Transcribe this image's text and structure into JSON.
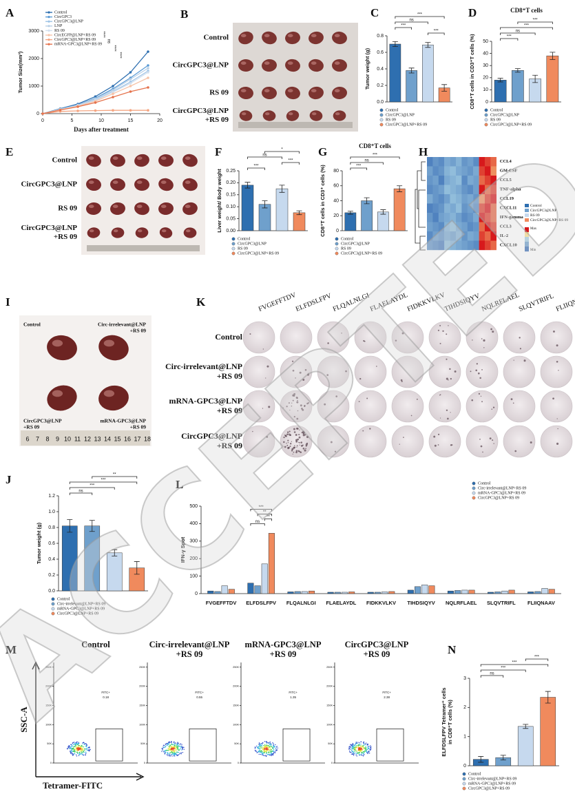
{
  "watermark": "ACCEPTED",
  "chart_data": [
    {
      "panel": "A",
      "type": "line",
      "y_label": "Tumor Size(mm³)",
      "x_label": "Days after treatment",
      "x": [
        0,
        3,
        6,
        9,
        12,
        15,
        18
      ],
      "xlim": [
        0,
        20
      ],
      "xticks": [
        0,
        5,
        10,
        15,
        20
      ],
      "ylim": [
        0,
        3000
      ],
      "yticks": [
        0,
        1000,
        2000,
        3000
      ],
      "series": [
        {
          "name": "Control",
          "color": "#2e6fb0",
          "values": [
            0,
            180,
            350,
            620,
            1000,
            1500,
            2250
          ]
        },
        {
          "name": "CircGPC3",
          "color": "#5b9bd5",
          "values": [
            0,
            170,
            320,
            560,
            900,
            1300,
            1750
          ]
        },
        {
          "name": "CircGPC3@LNP",
          "color": "#9dc3e6",
          "values": [
            0,
            150,
            300,
            500,
            800,
            1150,
            1550
          ]
        },
        {
          "name": "LNP",
          "color": "#b8cfe6",
          "values": [
            0,
            160,
            310,
            540,
            850,
            1250,
            1650
          ]
        },
        {
          "name": "RS 09",
          "color": "#d2dfee",
          "values": [
            0,
            150,
            290,
            480,
            780,
            1100,
            1500
          ]
        },
        {
          "name": "CircEGFP@LNP+RS 09",
          "color": "#f6c3a8",
          "values": [
            0,
            140,
            270,
            450,
            720,
            1000,
            1300
          ]
        },
        {
          "name": "CircGPC3@LNP+RS 09",
          "color": "#f4a582",
          "values": [
            0,
            80,
            100,
            110,
            120,
            120,
            120
          ]
        },
        {
          "name": "mRNA-GPC3@LNP+RS 09",
          "color": "#e5734d",
          "values": [
            0,
            130,
            250,
            400,
            600,
            800,
            950
          ]
        }
      ],
      "annotations": [
        "****",
        "ns",
        "****",
        "****"
      ]
    },
    {
      "panel": "C",
      "type": "bar",
      "y_label": "Tumor weight  (g)",
      "categories": [
        "Control",
        "CircGPC3@LNP",
        "RS 09",
        "CircGPC3@LNP+RS 09"
      ],
      "colors": [
        "#2e6fb0",
        "#6fa0cc",
        "#c6d9ee",
        "#f08a5d"
      ],
      "values": [
        0.7,
        0.38,
        0.69,
        0.17
      ],
      "errors": [
        0.03,
        0.03,
        0.03,
        0.04
      ],
      "ylim": [
        0,
        0.8
      ],
      "yticks": [
        {
          "value": 0,
          "label": "0.0"
        },
        0.2,
        0.4,
        0.6,
        0.8
      ],
      "comparisons": [
        {
          "pair": [
            0,
            3
          ],
          "label": "***"
        },
        {
          "pair": [
            0,
            2
          ],
          "label": "ns"
        },
        {
          "pair": [
            0,
            1
          ],
          "label": "***"
        },
        {
          "pair": [
            2,
            3
          ],
          "label": "***"
        }
      ]
    },
    {
      "panel": "D",
      "type": "bar",
      "title": "CD8⁺T cells",
      "y_label": "CD8⁺T cells in CD3⁺T cells (%)",
      "categories": [
        "Control",
        "CircGPC3@LNP",
        "RS 09",
        "CircGPC3@LNP+RS 09"
      ],
      "colors": [
        "#2e6fb0",
        "#6fa0cc",
        "#c6d9ee",
        "#f08a5d"
      ],
      "values": [
        18,
        26,
        19,
        38
      ],
      "errors": [
        1.5,
        1.5,
        3,
        3
      ],
      "ylim": [
        0,
        50
      ],
      "yticks": [
        0,
        10,
        20,
        30,
        40,
        50
      ],
      "comparisons": [
        {
          "pair": [
            1,
            3
          ],
          "label": "***"
        },
        {
          "pair": [
            0,
            3
          ],
          "label": "***"
        },
        {
          "pair": [
            0,
            2
          ],
          "label": "ns"
        },
        {
          "pair": [
            0,
            1
          ],
          "label": "***"
        }
      ]
    },
    {
      "panel": "F",
      "type": "bar",
      "y_label": "Liver weight/ Body weight",
      "categories": [
        "Control",
        "CircGPC3@LNP",
        "RS 09",
        "CircGPC3@LNP+RS 09"
      ],
      "colors": [
        "#2e6fb0",
        "#6fa0cc",
        "#c6d9ee",
        "#f08a5d"
      ],
      "values": [
        0.19,
        0.11,
        0.175,
        0.075
      ],
      "errors": [
        0.012,
        0.015,
        0.015,
        0.008
      ],
      "ylim": [
        0,
        0.25
      ],
      "yticks": [
        {
          "value": 0,
          "label": "0.00"
        },
        0.05,
        {
          "value": 0.1,
          "label": "0.10"
        },
        0.15,
        {
          "value": 0.2,
          "label": "0.20"
        },
        0.25
      ],
      "comparisons": [
        {
          "pair": [
            1,
            3
          ],
          "label": "*"
        },
        {
          "pair": [
            0,
            2
          ],
          "label": "ns"
        },
        {
          "pair": [
            2,
            3
          ],
          "label": "***"
        },
        {
          "pair": [
            0,
            1
          ],
          "label": "***"
        }
      ]
    },
    {
      "panel": "G",
      "type": "bar",
      "title": "CD8⁺T cells",
      "y_label": "CD8⁺T cells in CD3⁺ cells (%)",
      "categories": [
        "Control",
        "CircGPC3@LNP",
        "RS 09",
        "CircGPC3@LNP+RS 09"
      ],
      "colors": [
        "#2e6fb0",
        "#6fa0cc",
        "#c6d9ee",
        "#f08a5d"
      ],
      "values": [
        24,
        40,
        25,
        56
      ],
      "errors": [
        2,
        4,
        3,
        4
      ],
      "ylim": [
        0,
        80
      ],
      "yticks": [
        0,
        20,
        40,
        60,
        80
      ],
      "comparisons": [
        {
          "pair": [
            0,
            3
          ],
          "label": "***"
        },
        {
          "pair": [
            0,
            2
          ],
          "label": "ns"
        },
        {
          "pair": [
            0,
            1
          ],
          "label": "***"
        }
      ]
    },
    {
      "panel": "J",
      "type": "bar",
      "y_label": "Tumor weight (g)",
      "categories": [
        "Control",
        "Circ-irrelevant@LNP+RS 09",
        "mRNA-GPC3@LNP+RS 09",
        "CircGPC3@LNP+RS 09"
      ],
      "colors": [
        "#2e6fb0",
        "#6fa0cc",
        "#c6d9ee",
        "#f08a5d"
      ],
      "values": [
        0.82,
        0.82,
        0.48,
        0.29
      ],
      "errors": [
        0.08,
        0.07,
        0.04,
        0.08
      ],
      "ylim": [
        0,
        1.2
      ],
      "yticks": [
        {
          "value": 0,
          "label": "0.0"
        },
        0.2,
        0.4,
        0.6,
        0.8,
        {
          "value": 1,
          "label": "1.0"
        },
        1.2
      ],
      "comparisons": [
        {
          "pair": [
            1,
            3
          ],
          "label": "**"
        },
        {
          "pair": [
            0,
            3
          ],
          "label": "***"
        },
        {
          "pair": [
            0,
            2
          ],
          "label": "***"
        },
        {
          "pair": [
            0,
            1
          ],
          "label": "ns"
        }
      ]
    },
    {
      "panel": "L",
      "type": "grouped_bar",
      "y_label": "IFN-γ Spot",
      "categories": [
        "FVGEFFTDV",
        "ELFDSLFPV",
        "FLQALNLGI",
        "FLAELAYDL",
        "FIDKKVLKV",
        "TIHDSIQYV",
        "NQLRFLAEL",
        "SLQVTRIFL",
        "FLIIQNAAV"
      ],
      "series": [
        {
          "name": "Control",
          "color": "#2e6fb0",
          "values": [
            15,
            60,
            10,
            8,
            8,
            20,
            15,
            8,
            10
          ]
        },
        {
          "name": "Circ-irrelevant@LNP+RS 09",
          "color": "#6fa0cc",
          "values": [
            12,
            45,
            12,
            8,
            8,
            40,
            18,
            10,
            12
          ]
        },
        {
          "name": "mRNA-GPC3@LNP+RS 09",
          "color": "#c6d9ee",
          "values": [
            45,
            170,
            12,
            8,
            10,
            50,
            20,
            15,
            30
          ]
        },
        {
          "name": "CircGPC3@LNP+RS 09",
          "color": "#f08a5d",
          "values": [
            25,
            345,
            15,
            10,
            12,
            45,
            20,
            20,
            25
          ]
        }
      ],
      "ylim": [
        0,
        500
      ],
      "yticks": [
        0,
        100,
        200,
        300,
        400,
        500
      ],
      "comparisons": [
        {
          "category": 1,
          "pair": [
            0,
            3
          ],
          "label": "***"
        },
        {
          "category": 1,
          "pair": [
            1,
            3
          ],
          "label": "**"
        },
        {
          "category": 1,
          "pair": [
            2,
            3
          ],
          "label": "**"
        },
        {
          "category": 1,
          "pair": [
            0,
            2
          ],
          "label": "ns"
        }
      ]
    },
    {
      "panel": "N",
      "type": "bar",
      "y_label": [
        "ELFDSLFPV Tetramer⁺ cells",
        "in CD8⁺T cells (%)"
      ],
      "categories": [
        "Control",
        "Circ-irrelevant@LNP+RS 09",
        "mRNA-GPC3@LNP+RS 09",
        "CircGPC3@LNP+RS 09"
      ],
      "colors": [
        "#2e6fb0",
        "#6fa0cc",
        "#c6d9ee",
        "#f08a5d"
      ],
      "values": [
        0.22,
        0.28,
        1.35,
        2.35
      ],
      "errors": [
        0.1,
        0.08,
        0.07,
        0.2
      ],
      "ylim": [
        0,
        3
      ],
      "yticks": [
        0,
        1,
        2,
        3
      ],
      "comparisons": [
        {
          "pair": [
            2,
            3
          ],
          "label": "***"
        },
        {
          "pair": [
            0,
            3
          ],
          "label": "***"
        },
        {
          "pair": [
            0,
            2
          ],
          "label": "***"
        },
        {
          "pair": [
            0,
            1
          ],
          "label": "ns"
        }
      ]
    }
  ],
  "photos": {
    "B": {
      "panel": "B",
      "rows": [
        [
          "Control"
        ],
        [
          "CircGPC3@LNP"
        ],
        [
          "RS 09"
        ],
        [
          "CircGPC3@LNP",
          "+RS 09"
        ]
      ]
    },
    "E": {
      "panel": "E",
      "rows": [
        [
          "Control"
        ],
        [
          "CircGPC3@LNP"
        ],
        [
          "RS 09"
        ],
        [
          "CircGPC3@LNP",
          "+RS 09"
        ]
      ]
    },
    "I": {
      "panel": "I",
      "labels": [
        [
          "Control"
        ],
        [
          "Circ-irrelevant@LNP",
          "+RS 09"
        ],
        [
          "CircGPC3@LNP",
          "+RS 09"
        ],
        [
          "mRNA-GPC3@LNP",
          "+RS 09"
        ]
      ],
      "ruler": [
        6,
        7,
        8,
        9,
        10,
        11,
        12,
        13,
        14,
        15,
        16,
        17,
        18
      ]
    },
    "K": {
      "panel": "K",
      "columns": [
        "FVGEFFTDV",
        "ELFDSLFPV",
        "FLQALNLGI",
        "FLAELAYDL",
        "FIDKKVLKV",
        "TIHDSIQYV",
        "NQLRFLAEL",
        "SLQVTRIFL",
        "FLIIQNAAV"
      ],
      "rows": [
        [
          "Control"
        ],
        [
          "Circ-irrelevant@LNP",
          "+RS 09"
        ],
        [
          "mRNA-GPC3@LNP",
          "+RS 09"
        ],
        [
          "CircGPC3@LNP",
          "+RS 09"
        ]
      ]
    }
  },
  "heatmap": {
    "panel": "H",
    "genes": [
      "CCL4",
      "GM-CSF",
      "CCL5",
      "TNF-alpha",
      "CCL19",
      "CXCL11",
      "IFN-gamma",
      "CCL3",
      "IL-2",
      "CXCL10"
    ],
    "groups": [
      "Control",
      "CircGPC3@LNP",
      "RS 09",
      "CircGPC3@LNP+RS 09"
    ],
    "group_colors": [
      "#2e6fb0",
      "#6fa0cc",
      "#c6d9ee",
      "#f08a5d"
    ],
    "scale_labels": [
      "Max",
      "Min"
    ],
    "values": [
      [
        -0.8,
        -0.6,
        -0.7,
        -0.4,
        -0.5,
        -0.3,
        -0.6,
        -0.5,
        -0.7,
        1,
        0.9,
        0.8
      ],
      [
        -0.5,
        -0.7,
        -0.6,
        -0.3,
        -0.2,
        -0.4,
        -0.5,
        -0.6,
        -0.4,
        0.9,
        1,
        0.7
      ],
      [
        -0.6,
        -0.5,
        -0.8,
        -0.4,
        -0.3,
        -0.2,
        -0.7,
        -0.4,
        -0.5,
        0.8,
        0.9,
        1
      ],
      [
        -0.7,
        -0.6,
        -0.5,
        -0.2,
        -0.3,
        -0.4,
        -0.6,
        -0.7,
        -0.5,
        1,
        0.8,
        0.9
      ],
      [
        -0.4,
        -0.6,
        -0.7,
        -0.5,
        -0.2,
        -0.3,
        -0.5,
        -0.4,
        -0.6,
        0.7,
        0.9,
        1
      ],
      [
        -0.8,
        -0.7,
        -0.6,
        -0.3,
        -0.4,
        -0.2,
        -0.6,
        -0.5,
        -0.7,
        0.9,
        1,
        0.8
      ],
      [
        -0.6,
        -0.8,
        -0.5,
        -0.4,
        -0.3,
        -0.5,
        -0.7,
        -0.6,
        -0.4,
        1,
        0.9,
        0.8
      ],
      [
        -0.5,
        -0.6,
        -0.7,
        -0.3,
        -0.2,
        -0.4,
        -0.5,
        -0.7,
        -0.6,
        0.8,
        1,
        0.9
      ],
      [
        -0.7,
        -0.5,
        -0.6,
        -0.4,
        -0.5,
        -0.3,
        -0.6,
        -0.4,
        -0.5,
        0.9,
        0.8,
        1
      ],
      [
        -0.6,
        -0.7,
        -0.8,
        -0.2,
        -0.3,
        -0.4,
        -0.5,
        -0.6,
        -0.7,
        1,
        0.9,
        0.8
      ]
    ]
  },
  "flow": {
    "panel": "M",
    "titles": [
      [
        "Control"
      ],
      [
        "Circ-irrelevant@LNP",
        "+RS 09"
      ],
      [
        "mRNA-GPC3@LNP",
        "+RS 09"
      ],
      [
        "CircGPC3@LNP",
        "+RS 09"
      ]
    ],
    "gate_label": "FITC+",
    "gate_values": [
      0.18,
      0.55,
      1.35,
      2.38
    ],
    "ylim": [
      0,
      262144
    ],
    "yticks": [
      0,
      {
        "value": 50000,
        "label": "50K"
      },
      {
        "value": 100000,
        "label": "100K"
      },
      {
        "value": 150000,
        "label": "150K"
      },
      {
        "value": 200000,
        "label": "200K"
      },
      {
        "value": 250000,
        "label": "250K"
      }
    ],
    "y_label": "SSC-A",
    "x_label": "Tetramer-FITC"
  }
}
